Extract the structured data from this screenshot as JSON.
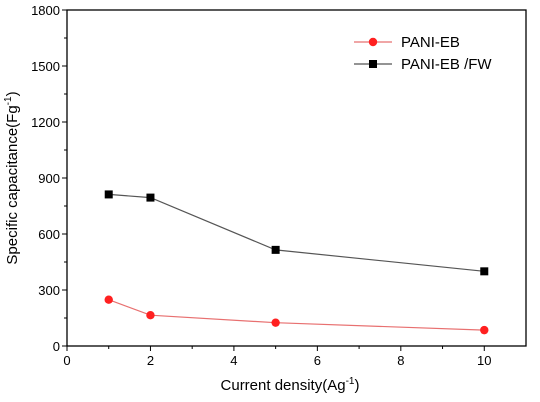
{
  "chart_data": {
    "type": "line",
    "xlabel_main": "Current density(Ag",
    "xlabel_sup": "-1",
    "xlabel_end": ")",
    "ylabel_main": "Specific capacitance(Fg",
    "ylabel_sup": "-1",
    "ylabel_end": ")",
    "xlim": [
      0,
      11
    ],
    "ylim": [
      0,
      1800
    ],
    "x_ticks": [
      "0",
      "2",
      "4",
      "6",
      "8",
      "10"
    ],
    "y_ticks": [
      "0",
      "300",
      "600",
      "900",
      "1200",
      "1500",
      "1800"
    ],
    "grid": false,
    "legend_position": "top-right",
    "series": [
      {
        "name": "PANI-EB",
        "marker": "circle",
        "color": "#ff2020",
        "line_color": "#e87070",
        "x": [
          1,
          2,
          5,
          10
        ],
        "y": [
          248,
          165,
          125,
          85
        ]
      },
      {
        "name": "PANI-EB /FW",
        "marker": "square",
        "color": "#000000",
        "line_color": "#555555",
        "x": [
          1,
          2,
          5,
          10
        ],
        "y": [
          812,
          795,
          515,
          400
        ]
      }
    ]
  }
}
